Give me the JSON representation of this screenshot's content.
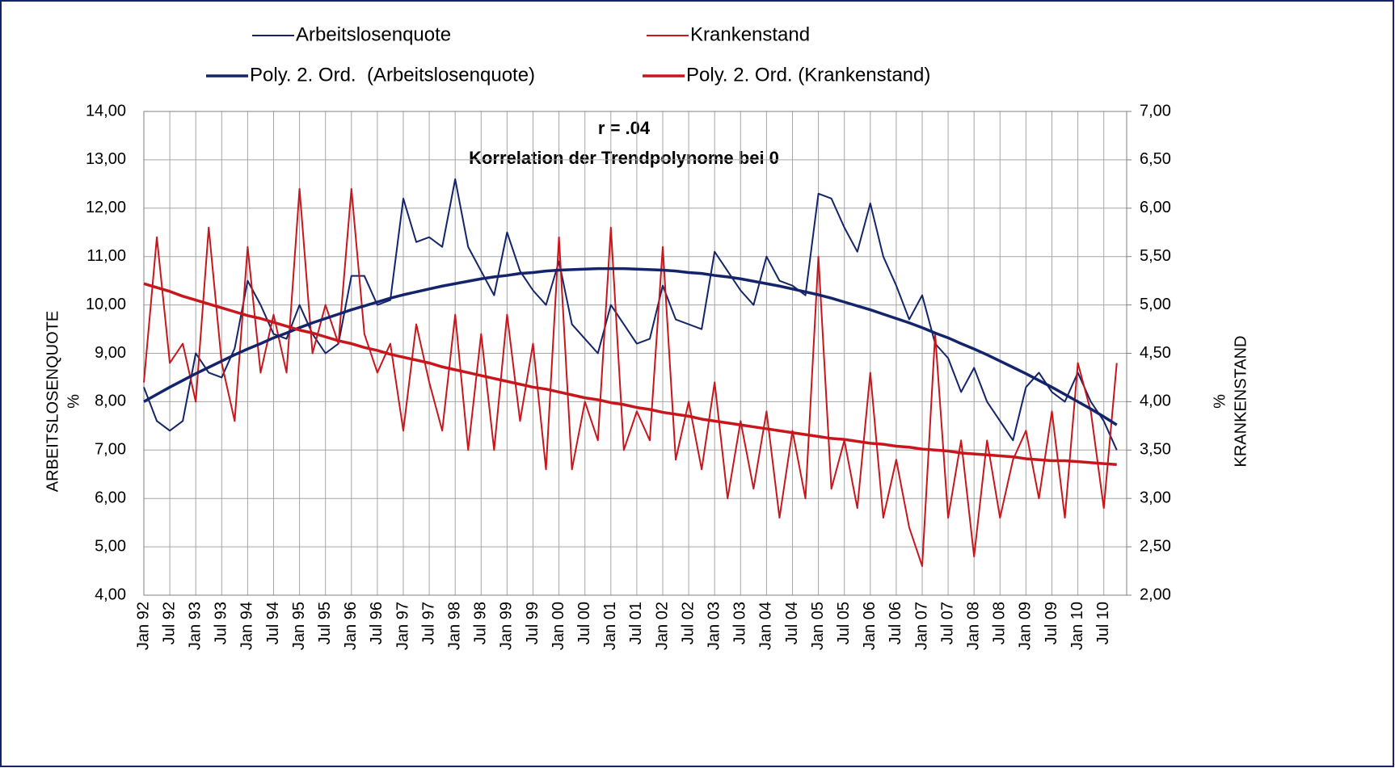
{
  "chart_data": {
    "type": "line",
    "title": "r = .04",
    "subtitle": "Korrelation der Trendpolynome bei 0",
    "y_label": [
      "ARBEITSLOSENQUOTE",
      "%"
    ],
    "y2_label": [
      "%",
      "KRANKENSTAND"
    ],
    "legend": "top",
    "grid": true,
    "categories": [
      "Jan 92",
      null,
      "Jul 92",
      null,
      "Jan 93",
      null,
      "Jul 93",
      null,
      "Jan 94",
      null,
      "Jul 94",
      null,
      "Jan 95",
      null,
      "Jul 95",
      null,
      "Jan 96",
      null,
      "Jul 96",
      null,
      "Jan 97",
      null,
      "Jul 97",
      null,
      "Jan 98",
      null,
      "Jul 98",
      null,
      "Jan 99",
      null,
      "Jul 99",
      null,
      "Jan 00",
      null,
      "Jul 00",
      null,
      "Jan 01",
      null,
      "Jul 01",
      null,
      "Jan 02",
      null,
      "Jul 02",
      null,
      "Jan 03",
      null,
      "Jul 03",
      null,
      "Jan 04",
      null,
      "Jul 04",
      null,
      "Jan 05",
      null,
      "Jul 05",
      null,
      "Jan 06",
      null,
      "Jul 06",
      null,
      "Jan 07",
      null,
      "Jul 07",
      null,
      "Jan 08",
      null,
      "Jul 08",
      null,
      "Jan 09",
      null,
      "Jul 09",
      null,
      "Jan 10",
      null,
      "Jul 10",
      null
    ],
    "ylim": [
      4,
      14
    ],
    "yticks": [
      {
        "value": 4,
        "label": "4,00"
      },
      {
        "value": 5,
        "label": "5,00"
      },
      {
        "value": 6,
        "label": "6,00"
      },
      {
        "value": 7,
        "label": "7,00"
      },
      {
        "value": 8,
        "label": "8,00"
      },
      {
        "value": 9,
        "label": "9,00"
      },
      {
        "value": 10,
        "label": "10,00"
      },
      {
        "value": 11,
        "label": "11,00"
      },
      {
        "value": 12,
        "label": "12,00"
      },
      {
        "value": 13,
        "label": "13,00"
      },
      {
        "value": 14,
        "label": "14,00"
      }
    ],
    "y2lim": [
      2,
      7
    ],
    "y2ticks": [
      {
        "value": 2,
        "label": "2,00"
      },
      {
        "value": 2.5,
        "label": "2,50"
      },
      {
        "value": 3,
        "label": "3,00"
      },
      {
        "value": 3.5,
        "label": "3,50"
      },
      {
        "value": 4,
        "label": "4,00"
      },
      {
        "value": 4.5,
        "label": "4,50"
      },
      {
        "value": 5,
        "label": "5,00"
      },
      {
        "value": 5.5,
        "label": "5,50"
      },
      {
        "value": 6,
        "label": "6,00"
      },
      {
        "value": 6.5,
        "label": "6,50"
      },
      {
        "value": 7,
        "label": "7,00"
      }
    ],
    "series": [
      {
        "name": "Arbeitslosenquote",
        "color": "#13246a",
        "width": 2,
        "axis": "y",
        "values": [
          8.3,
          7.6,
          7.4,
          7.6,
          9.0,
          8.6,
          8.5,
          9.1,
          10.5,
          10.0,
          9.4,
          9.3,
          10.0,
          9.4,
          9.0,
          9.2,
          10.6,
          10.6,
          10.0,
          10.1,
          12.2,
          11.3,
          11.4,
          11.2,
          12.6,
          11.2,
          10.7,
          10.2,
          11.5,
          10.7,
          10.3,
          10.0,
          10.9,
          9.6,
          9.3,
          9.0,
          10.0,
          9.6,
          9.2,
          9.3,
          10.4,
          9.7,
          9.6,
          9.5,
          11.1,
          10.7,
          10.3,
          10.0,
          11.0,
          10.5,
          10.4,
          10.2,
          12.3,
          12.2,
          11.6,
          11.1,
          12.1,
          11.0,
          10.4,
          9.7,
          10.2,
          9.2,
          8.9,
          8.2,
          8.7,
          8.0,
          7.6,
          7.2,
          8.3,
          8.6,
          8.2,
          8.0,
          8.6,
          8.0,
          7.6,
          7.0
        ]
      },
      {
        "name": "Krankenstand",
        "color": "#c8161d",
        "width": 2,
        "axis": "y2",
        "values": [
          4.2,
          5.7,
          4.4,
          4.6,
          4.0,
          5.8,
          4.4,
          3.8,
          5.6,
          4.3,
          4.9,
          4.3,
          6.2,
          4.5,
          5.0,
          4.6,
          6.2,
          4.7,
          4.3,
          4.6,
          3.7,
          4.8,
          4.2,
          3.7,
          4.9,
          3.5,
          4.7,
          3.5,
          4.9,
          3.8,
          4.6,
          3.3,
          5.7,
          3.3,
          4.0,
          3.6,
          5.8,
          3.5,
          3.9,
          3.6,
          5.6,
          3.4,
          4.0,
          3.3,
          4.2,
          3.0,
          3.8,
          3.1,
          3.9,
          2.8,
          3.7,
          3.0,
          5.5,
          3.1,
          3.6,
          2.9,
          4.3,
          2.8,
          3.4,
          2.7,
          2.3,
          4.7,
          2.8,
          3.6,
          2.4,
          3.6,
          2.8,
          3.4,
          3.7,
          3.0,
          3.9,
          2.8,
          4.4,
          3.9,
          2.9,
          4.4
        ]
      },
      {
        "name": "Poly. 2. Ord.  (Arbeitslosenquote)",
        "color": "#13246a",
        "width": 3.5,
        "axis": "y",
        "values": [
          8.0,
          8.15,
          8.3,
          8.44,
          8.58,
          8.71,
          8.84,
          8.97,
          9.09,
          9.2,
          9.32,
          9.42,
          9.53,
          9.63,
          9.72,
          9.81,
          9.9,
          9.98,
          10.06,
          10.14,
          10.21,
          10.27,
          10.33,
          10.39,
          10.44,
          10.49,
          10.54,
          10.58,
          10.61,
          10.65,
          10.67,
          10.7,
          10.72,
          10.73,
          10.74,
          10.75,
          10.75,
          10.75,
          10.74,
          10.73,
          10.72,
          10.7,
          10.67,
          10.65,
          10.61,
          10.58,
          10.54,
          10.49,
          10.44,
          10.39,
          10.33,
          10.27,
          10.21,
          10.14,
          10.06,
          9.98,
          9.9,
          9.81,
          9.72,
          9.63,
          9.53,
          9.42,
          9.32,
          9.2,
          9.09,
          8.97,
          8.84,
          8.71,
          8.58,
          8.44,
          8.3,
          8.15,
          8.0,
          7.85,
          7.69,
          7.52
        ]
      },
      {
        "name": "Poly. 2. Ord. (Krankenstand)",
        "color": "#c8161d",
        "width": 3.5,
        "axis": "y2",
        "values": [
          5.22,
          5.18,
          5.14,
          5.09,
          5.05,
          5.01,
          4.97,
          4.93,
          4.89,
          4.86,
          4.82,
          4.78,
          4.74,
          4.71,
          4.67,
          4.63,
          4.6,
          4.56,
          4.53,
          4.49,
          4.46,
          4.43,
          4.4,
          4.36,
          4.33,
          4.3,
          4.27,
          4.24,
          4.21,
          4.18,
          4.15,
          4.13,
          4.1,
          4.07,
          4.04,
          4.02,
          3.99,
          3.97,
          3.94,
          3.92,
          3.89,
          3.87,
          3.85,
          3.82,
          3.8,
          3.78,
          3.76,
          3.74,
          3.72,
          3.7,
          3.68,
          3.66,
          3.64,
          3.62,
          3.61,
          3.59,
          3.57,
          3.56,
          3.54,
          3.53,
          3.51,
          3.5,
          3.49,
          3.47,
          3.46,
          3.45,
          3.44,
          3.43,
          3.41,
          3.4,
          3.39,
          3.39,
          3.38,
          3.37,
          3.36,
          3.35
        ]
      }
    ]
  }
}
